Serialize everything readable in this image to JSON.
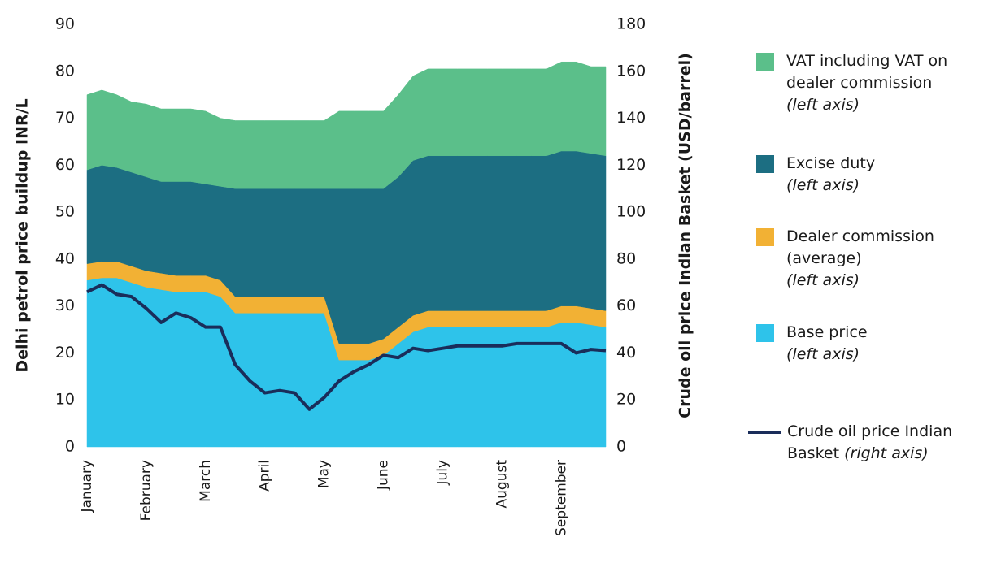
{
  "chart_data": {
    "type": "stacked_area_line",
    "y_label": "Delhi petrol price buildup INR/L",
    "y2_label": "Crude oil price Indian Basket (USD/barrel)",
    "categories": [
      "January",
      null,
      null,
      null,
      "February",
      null,
      null,
      null,
      "March",
      null,
      null,
      null,
      "April",
      null,
      null,
      null,
      "May",
      null,
      null,
      null,
      "June",
      null,
      null,
      null,
      "July",
      null,
      null,
      null,
      "August",
      null,
      null,
      null,
      "September",
      null,
      null,
      null
    ],
    "ylim": [
      0,
      90
    ],
    "yticks": [
      0,
      10,
      20,
      30,
      40,
      50,
      60,
      70,
      80,
      90
    ],
    "y2lim": [
      0,
      180
    ],
    "y2ticks": [
      0,
      20,
      40,
      60,
      80,
      100,
      120,
      140,
      160,
      180
    ],
    "grid": false,
    "series": [
      {
        "name": "Base price",
        "note": "(left axis)",
        "color": "#2ec3ea",
        "values": [
          35.5,
          36,
          36,
          35,
          34,
          33.5,
          33,
          33,
          33,
          32,
          28.5,
          28.5,
          28.5,
          28.5,
          28.5,
          28.5,
          28.5,
          18.5,
          18.5,
          18.5,
          19.5,
          22,
          24.5,
          25.5,
          25.5,
          25.5,
          25.5,
          25.5,
          25.5,
          25.5,
          25.5,
          25.5,
          26.5,
          26.5,
          26,
          25.5
        ]
      },
      {
        "name": "Dealer commission (average)",
        "note": "(left axis)",
        "color": "#f2b134",
        "values": [
          3.5,
          3.5,
          3.5,
          3.5,
          3.5,
          3.5,
          3.5,
          3.5,
          3.5,
          3.5,
          3.5,
          3.5,
          3.5,
          3.5,
          3.5,
          3.5,
          3.5,
          3.5,
          3.5,
          3.5,
          3.5,
          3.5,
          3.5,
          3.5,
          3.5,
          3.5,
          3.5,
          3.5,
          3.5,
          3.5,
          3.5,
          3.5,
          3.5,
          3.5,
          3.5,
          3.5
        ]
      },
      {
        "name": "Excise duty",
        "note": "(left axis)",
        "color": "#1c6e82",
        "values": [
          20,
          20.5,
          20,
          20,
          20,
          19.5,
          20,
          20,
          19.5,
          20,
          23,
          23,
          23,
          23,
          23,
          23,
          23,
          33,
          33,
          33,
          32,
          32,
          33,
          33,
          33,
          33,
          33,
          33,
          33,
          33,
          33,
          33,
          33,
          33,
          33,
          33
        ]
      },
      {
        "name": "VAT including VAT on dealer commission",
        "note": "(left axis)",
        "color": "#5bbf8a",
        "values": [
          16,
          16,
          15.5,
          15,
          15.5,
          15.5,
          15.5,
          15.5,
          15.5,
          14.5,
          14.5,
          14.5,
          14.5,
          14.5,
          14.5,
          14.5,
          14.5,
          16.5,
          16.5,
          16.5,
          16.5,
          17.5,
          18,
          18.5,
          18.5,
          18.5,
          18.5,
          18.5,
          18.5,
          18.5,
          18.5,
          18.5,
          19,
          19,
          18.5,
          19
        ]
      },
      {
        "name": "Crude oil price Indian Basket",
        "note": "(right axis)",
        "color": "#1a2d5a",
        "axis": "y2",
        "values": [
          66,
          69,
          65,
          64,
          59,
          53,
          57,
          55,
          51,
          51,
          35,
          28,
          23,
          24,
          23,
          16,
          21,
          28,
          32,
          35,
          39,
          38,
          42,
          41,
          42,
          43,
          43,
          43,
          43,
          44,
          44,
          44,
          44,
          40,
          41.5,
          41
        ]
      }
    ]
  }
}
